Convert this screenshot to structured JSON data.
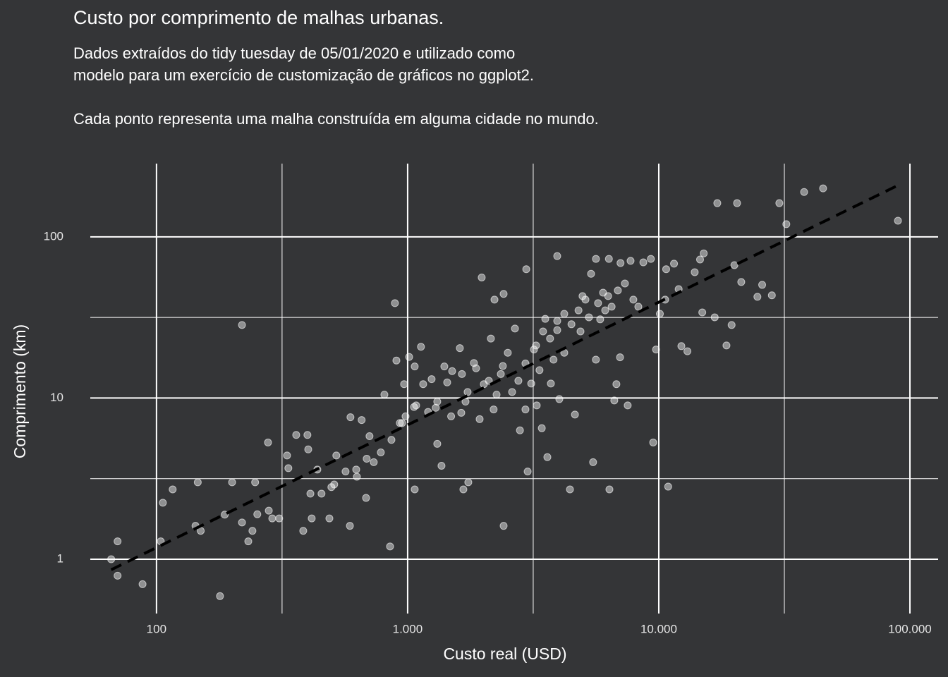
{
  "chart_data": {
    "type": "scatter",
    "title": "Custo por comprimento de malhas urbanas.",
    "subtitle": "Dados extraídos do tidy tuesday de 05/01/2020 e utilizado como\nmodelo para um exercício de customização de gráficos no ggplot2.\n\nCada ponto representa uma malha construída em alguma cidade no mundo.",
    "x_label": "Custo real (USD)",
    "y_label": "Comprimento (km)",
    "xlog": true,
    "ylog": true,
    "grid": true,
    "xlim": [
      54.5,
      129500
    ],
    "ylim": [
      0.46,
      285
    ],
    "xticks": [
      100,
      {
        "value": 1000,
        "label": "1.000"
      },
      {
        "value": 10000,
        "label": "10.000"
      },
      {
        "value": 100000,
        "label": "100.000"
      }
    ],
    "yticks": [
      1,
      10,
      100
    ],
    "color": "#ffffff",
    "x": [
      66,
      70,
      70,
      88,
      104,
      106,
      116,
      146,
      143,
      150,
      179,
      200,
      187,
      219,
      219,
      232,
      241,
      247,
      252,
      278,
      280,
      289,
      308,
      331,
      335,
      360,
      384,
      399,
      402,
      415,
      410,
      454,
      488,
      510,
      520,
      589,
      592,
      628,
      656,
      683,
      705,
      733,
      808,
      851,
      890,
      902,
      950,
      968,
      1014,
      1060,
      1067,
      1130,
      1206,
      1246,
      1294,
      1312,
      1364,
      1437,
      1504,
      1614,
      1635,
      1667,
      1733,
      1744,
      1873,
      1972,
      1935,
      2011,
      2145,
      2217,
      2260,
      2394,
      2411,
      2411,
      2606,
      2675,
      2800,
      2967,
      3005,
      3105,
      3184,
      3266,
      3421,
      3532,
      3600,
      3718,
      3941,
      3941,
      4018,
      4204,
      4429,
      4636,
      4879,
      5105,
      5374,
      5476,
      5617,
      5843,
      6118,
      6285,
      6360,
      17100,
      20500,
      30200,
      32200,
      37900,
      45100,
      89600,
      20000,
      21300,
      25800,
      28200,
      24700,
      19500,
      18600,
      16700,
      14900,
      15100,
      14600,
      13900,
      12300,
      13000,
      10900,
      9500,
      10700,
      11500,
      12000,
      10600,
      10100,
      9750,
      7520,
      7010,
      6780,
      6650,
      5620,
      6330,
      7040,
      7720,
      8680,
      9300,
      3460,
      3690,
      3941,
      4204,
      4490,
      4790,
      4970,
      5270,
      5730,
      6000,
      6490,
      6870,
      7330,
      7920,
      8290,
      3245,
      2945,
      2760,
      3350,
      3810,
      2505,
      2350,
      2105,
      1700,
      1490,
      1312,
      1153,
      1081,
      981,
      862,
      782,
      687,
      624,
      566,
      497,
      437,
      2200,
      2945,
      1836,
      1645,
      1400,
      1067,
      931
    ],
    "y": [
      1.0,
      1.29,
      0.79,
      0.7,
      1.29,
      2.24,
      2.71,
      3.0,
      1.61,
      1.5,
      0.59,
      3.0,
      1.89,
      28.4,
      1.69,
      1.29,
      1.5,
      3.0,
      1.9,
      5.3,
      2.0,
      1.79,
      1.79,
      4.4,
      3.67,
      5.9,
      1.5,
      5.9,
      4.8,
      1.79,
      2.55,
      2.55,
      1.79,
      2.91,
      4.4,
      1.61,
      7.6,
      3.25,
      7.3,
      2.4,
      5.8,
      4.0,
      10.5,
      1.2,
      38.8,
      17.1,
      7.0,
      12.2,
      18,
      8.8,
      2.71,
      20.8,
      8.2,
      13.1,
      8.7,
      5.2,
      3.8,
      12.5,
      14.7,
      20.4,
      8.1,
      2.71,
      10.9,
      3.0,
      15.3,
      56,
      7.4,
      12.2,
      23.4,
      40.8,
      10.5,
      15.8,
      1.61,
      44.3,
      10.9,
      27,
      6.3,
      63,
      3.5,
      12.3,
      20,
      9.0,
      6.5,
      31,
      4.3,
      12.3,
      76,
      26.4,
      9.85,
      19.1,
      2.71,
      7.9,
      25.9,
      40.8,
      59,
      4.0,
      17.3,
      30.8,
      35,
      42.9,
      2.71,
      162,
      162,
      162,
      120,
      190,
      200,
      126,
      66.8,
      52.5,
      50.4,
      43.4,
      42.5,
      28.4,
      21.2,
      31.7,
      34,
      79,
      72.4,
      60.4,
      21,
      19.5,
      2.82,
      5.3,
      63,
      68.2,
      47.4,
      40.8,
      33.3,
      20,
      9.0,
      17.9,
      12.2,
      9.66,
      73,
      73,
      68.8,
      71,
      69.5,
      73,
      25.9,
      23.4,
      30.1,
      33.3,
      28.7,
      35,
      42.9,
      31.7,
      38.8,
      45.1,
      36.9,
      46.5,
      51.4,
      40.8,
      36.9,
      21.2,
      16.4,
      12.8,
      14.9,
      17.3,
      19.1,
      14.1,
      12.8,
      9.5,
      7.7,
      9.5,
      12.2,
      9.0,
      7.7,
      5.5,
      4.6,
      4.2,
      3.6,
      3.5,
      2.8,
      3.6,
      8.5,
      8.5,
      16.5,
      14.1,
      15.7,
      15.7,
      7.0
    ],
    "trend": {
      "x": [
        66,
        90800
      ],
      "y": [
        0.86,
        211
      ],
      "color": "#000000"
    }
  }
}
